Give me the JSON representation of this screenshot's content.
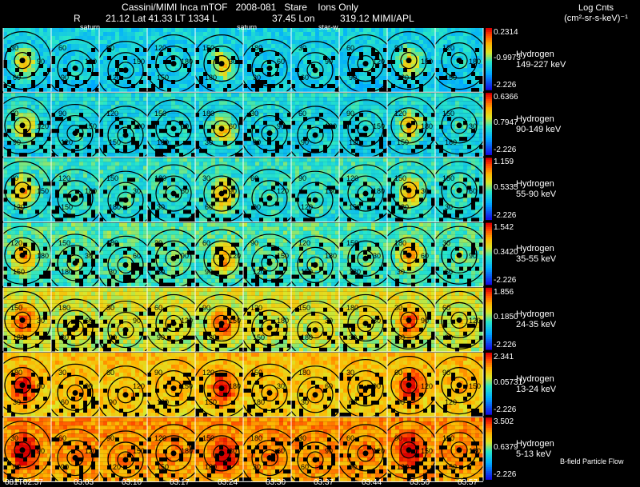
{
  "header": {
    "title": "Cassini/MIMI Inca mTOF   2008-081   Stare    Ions Only",
    "line2": [
      {
        "text": "R",
        "x": 92
      },
      {
        "text": "21.12 Lat 41.33 LT 1334 L",
        "x": 132
      },
      {
        "text": "37.45 Lon",
        "x": 340
      },
      {
        "text": "319.12  MIMI/APL",
        "x": 425
      }
    ],
    "unit_line1": "Log Cnts",
    "unit_line2": "(cm²-sr-s-keV)⁻¹"
  },
  "markers": [
    "saturn",
    "saturn",
    "star-w"
  ],
  "footer": "B-field Particle Flow",
  "time_labels": [
    "081T02:57",
    "03:03",
    "03:10",
    "03:17",
    "03:24",
    "03:30",
    "03:37",
    "03:44",
    "03:50",
    "03:57"
  ],
  "colors": {
    "background": "#000000",
    "grid_line": "#ffffff",
    "contour": "#000000"
  },
  "chart_data": {
    "type": "heatmap",
    "title": "Cassini/MIMI Inca mTOF 2008-081 Stare Ions Only",
    "colorbar_label": "Log Cnts (cm²-sr-s-keV)⁻¹",
    "x": [
      "081T02:57",
      "03:03",
      "03:10",
      "03:17",
      "03:24",
      "03:30",
      "03:37",
      "03:44",
      "03:50",
      "03:57"
    ],
    "contour_labels": [
      "30",
      "60",
      "90",
      "120",
      "150",
      "180"
    ],
    "series": [
      {
        "species": "Hydrogen",
        "energy": "149-227 keV",
        "max": "0.2314",
        "mid": "-0.9973",
        "min": "-2.226",
        "level": 0.35
      },
      {
        "species": "Hydrogen",
        "energy": "90-149 keV",
        "max": "0.6366",
        "mid": "0.7947",
        "min": "-2.226",
        "level": 0.38
      },
      {
        "species": "Hydrogen",
        "energy": "55-90 keV",
        "max": "1.159",
        "mid": "0.5335",
        "min": "-2.226",
        "level": 0.42
      },
      {
        "species": "Hydrogen",
        "energy": "35-55 keV",
        "max": "1.542",
        "mid": "0.3420",
        "min": "-2.226",
        "level": 0.46
      },
      {
        "species": "Hydrogen",
        "energy": "24-35 keV",
        "max": "1.856",
        "mid": "0.1850",
        "min": "-2.226",
        "level": 0.6
      },
      {
        "species": "Hydrogen",
        "energy": "13-24 keV",
        "max": "2.341",
        "mid": "0.05731",
        "min": "-2.226",
        "level": 0.7
      },
      {
        "species": "Hydrogen",
        "energy": "5-13 keV",
        "max": "3.502",
        "mid": "0.6379",
        "min": "-2.226",
        "level": 0.78
      }
    ]
  }
}
